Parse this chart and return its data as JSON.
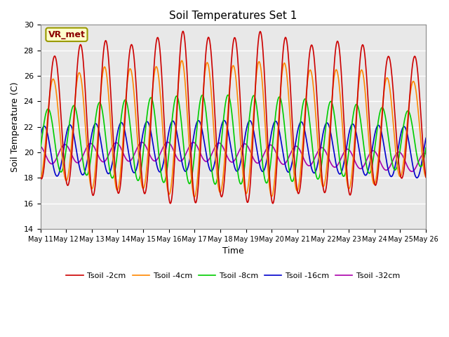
{
  "title": "Soil Temperatures Set 1",
  "xlabel": "Time",
  "ylabel": "Soil Temperature (C)",
  "ylim": [
    14,
    30
  ],
  "yticks": [
    14,
    16,
    18,
    20,
    22,
    24,
    26,
    28,
    30
  ],
  "annotation_text": "VR_met",
  "series_colors": {
    "Tsoil -2cm": "#cc0000",
    "Tsoil -4cm": "#ff8800",
    "Tsoil -8cm": "#00cc00",
    "Tsoil -16cm": "#0000cc",
    "Tsoil -32cm": "#aa00aa"
  },
  "background_color": "#e8e8e8",
  "x_start": 11,
  "x_end": 26,
  "x_tick_positions": [
    11,
    12,
    13,
    14,
    15,
    16,
    17,
    18,
    19,
    20,
    21,
    22,
    23,
    24,
    25,
    26
  ],
  "x_tick_labels": [
    "May 11",
    "May 12",
    "May 13",
    "May 14",
    "May 15",
    "May 16",
    "May 17",
    "May 18",
    "May 19",
    "May 20",
    "May 21",
    "May 22",
    "May 23",
    "May 24",
    "May 25",
    "May 26"
  ]
}
